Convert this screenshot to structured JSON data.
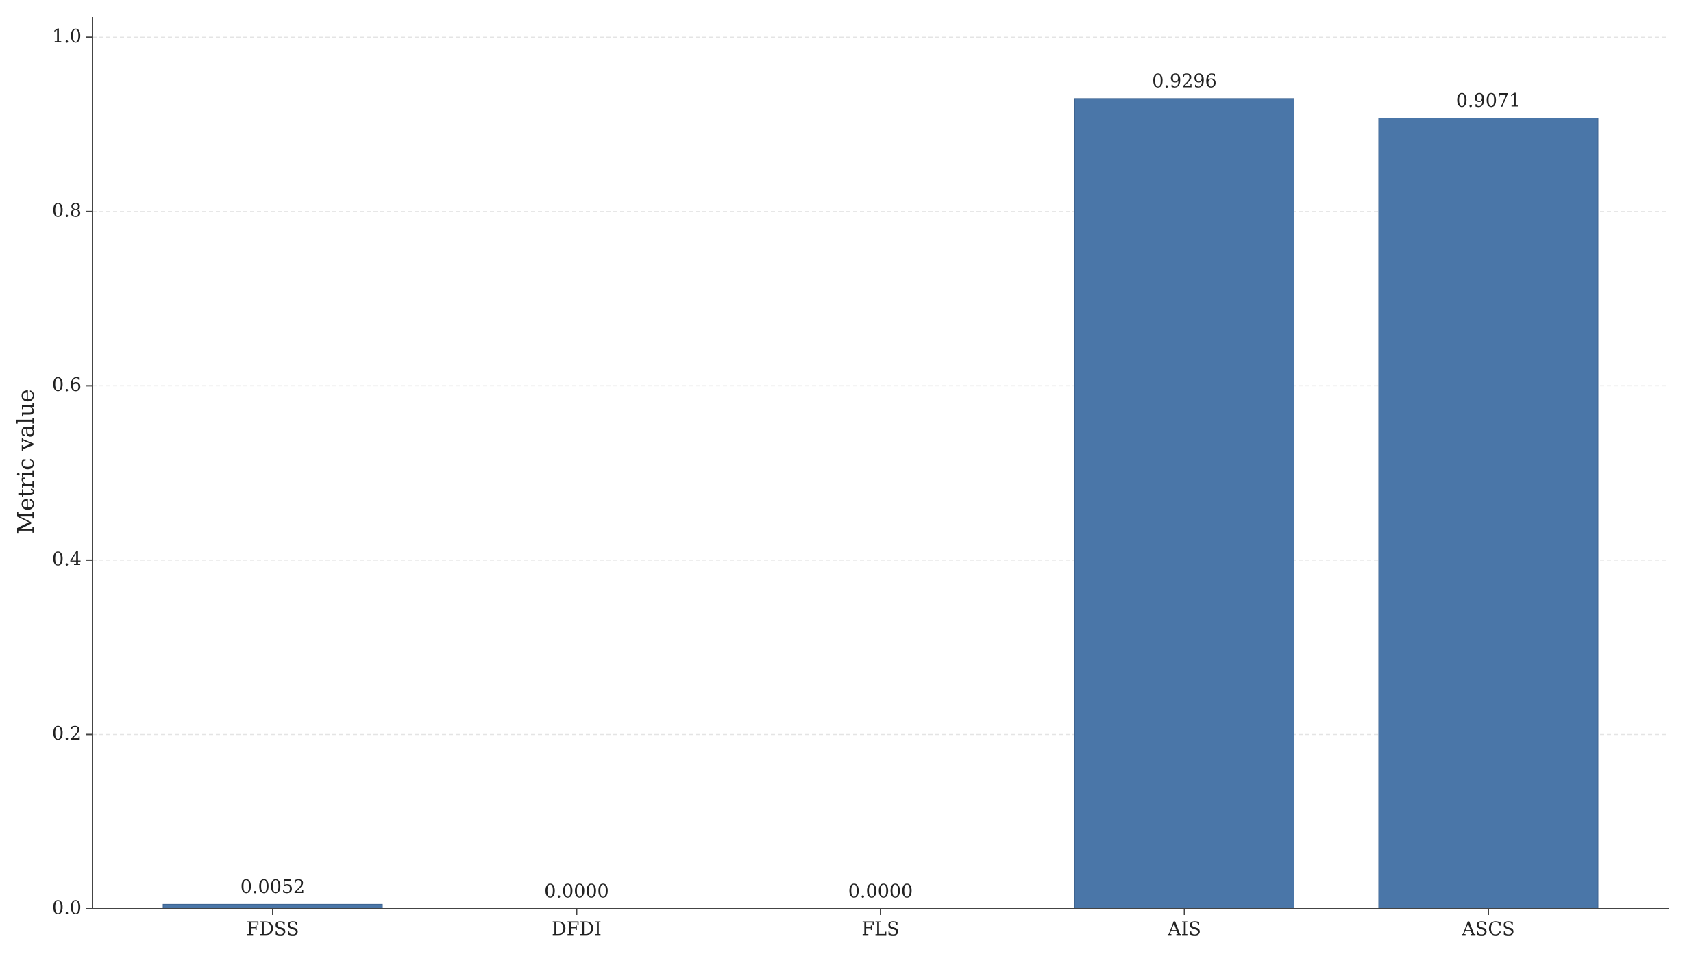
{
  "chart_data": {
    "type": "bar",
    "y_label": "Metric value",
    "categories": [
      "FDSS",
      "DFDI",
      "FLS",
      "AIS",
      "ASCS"
    ],
    "values": [
      0.0052,
      0,
      0,
      0.9296,
      0.9071
    ],
    "value_labels": [
      "0.0052",
      "0.0000",
      "0.0000",
      "0.9296",
      "0.9071"
    ],
    "color": "#4a76a8",
    "ylim": [
      0,
      1.023
    ],
    "yticks": [
      {
        "value": 0,
        "label": "0.0"
      },
      {
        "value": 0.2,
        "label": "0.2"
      },
      {
        "value": 0.4,
        "label": "0.4"
      },
      {
        "value": 0.6,
        "label": "0.6"
      },
      {
        "value": 0.8,
        "label": "0.8"
      },
      {
        "value": 1,
        "label": "1.0"
      }
    ],
    "grid": true
  }
}
